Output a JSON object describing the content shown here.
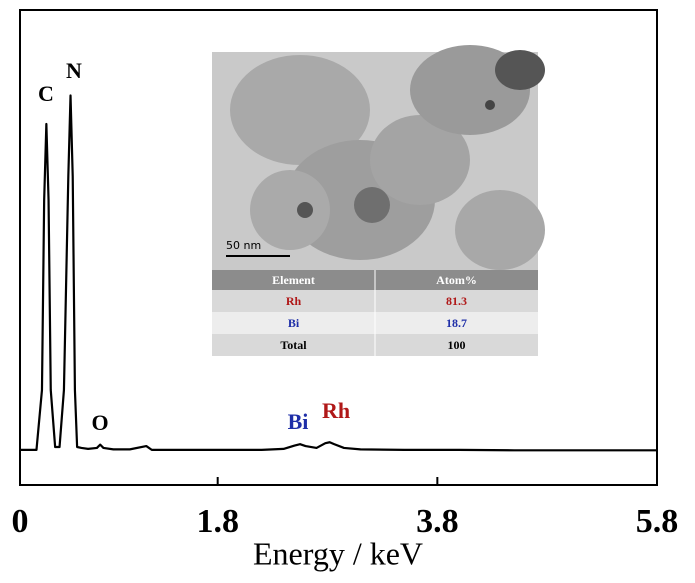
{
  "chart_data": {
    "type": "line",
    "x_label": "Energy / keV",
    "x": [
      0,
      0.15,
      0.2,
      0.22,
      0.24,
      0.26,
      0.28,
      0.32,
      0.36,
      0.4,
      0.44,
      0.46,
      0.48,
      0.5,
      0.52,
      0.56,
      0.62,
      0.7,
      0.73,
      0.76,
      0.85,
      0.9,
      1.0,
      1.15,
      1.2,
      1.25,
      1.4,
      1.8,
      2.2,
      2.4,
      2.5,
      2.55,
      2.6,
      2.7,
      2.78,
      2.82,
      2.86,
      2.95,
      3.1,
      3.5,
      4.0,
      4.5,
      5.0,
      5.8
    ],
    "series": [
      {
        "color": "#000000",
        "values": [
          7.4,
          7.4,
          20,
          60,
          76,
          60,
          20,
          8,
          8,
          20,
          65,
          82,
          65,
          20,
          8,
          7.8,
          7.6,
          7.8,
          8.5,
          7.8,
          7.5,
          7.5,
          7.5,
          8.2,
          7.4,
          7.4,
          7.4,
          7.4,
          7.4,
          7.6,
          8.3,
          8.6,
          8.2,
          7.8,
          8.8,
          9,
          8.6,
          7.8,
          7.5,
          7.4,
          7.4,
          7.3,
          7.3,
          7.3
        ]
      }
    ],
    "xlim": [
      0,
      5.8
    ],
    "xticks": [
      0,
      1.8,
      3.8,
      5.8
    ],
    "ylim": [
      0,
      100
    ],
    "annotations": [
      {
        "text": "C",
        "color": "#000000"
      },
      {
        "text": "N",
        "color": "#000000"
      },
      {
        "text": "O",
        "color": "#000000"
      },
      {
        "text": "Bi",
        "color": "#1f2fa8"
      },
      {
        "text": "Rh",
        "color": "#b01818"
      }
    ]
  },
  "inset": {
    "scale_bar": "50 nm",
    "table": {
      "header": [
        "Element",
        "Atom%"
      ],
      "rows": [
        [
          "Rh",
          "81.3"
        ],
        [
          "Bi",
          "18.7"
        ],
        [
          "Total",
          "100"
        ]
      ],
      "row_colors": [
        "#b01818",
        "#1f2fa8",
        "#000000"
      ]
    }
  }
}
